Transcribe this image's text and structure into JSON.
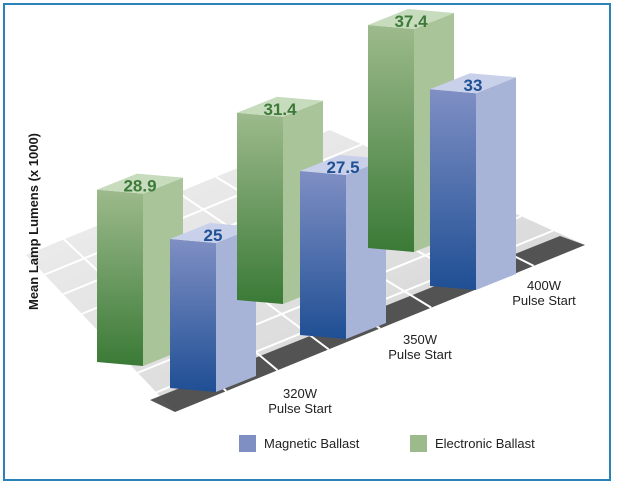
{
  "chart_data": {
    "type": "bar",
    "ylabel": "Mean Lamp Lumens (x 1000)",
    "categories": [
      [
        "320W",
        "Pulse Start"
      ],
      [
        "350W",
        "Pulse Start"
      ],
      [
        "400W",
        "Pulse Start"
      ]
    ],
    "series": [
      {
        "name": "Magnetic Ballast",
        "values": [
          25,
          27.5,
          33
        ]
      },
      {
        "name": "Electronic Ballast",
        "values": [
          28.9,
          31.4,
          37.4
        ]
      }
    ],
    "value_labels": {
      "Magnetic Ballast": [
        "25",
        "27.5",
        "33"
      ],
      "Electronic Ballast": [
        "28.9",
        "31.4",
        "37.4"
      ]
    },
    "legend_position": "bottom",
    "colors": {
      "magnetic_front_top": "#7f8fc4",
      "magnetic_front_bottom": "#1f4f94",
      "magnetic_side": "#a8b3d8",
      "magnetic_top": "#c9d0ea",
      "electronic_front_top": "#9dba8c",
      "electronic_front_bottom": "#3a7a36",
      "electronic_side": "#a9c498",
      "electronic_top": "#c7dbbd",
      "magnetic_label": "#1f4f94",
      "electronic_label": "#3d7a3a",
      "frame": "#2a83b8"
    }
  }
}
